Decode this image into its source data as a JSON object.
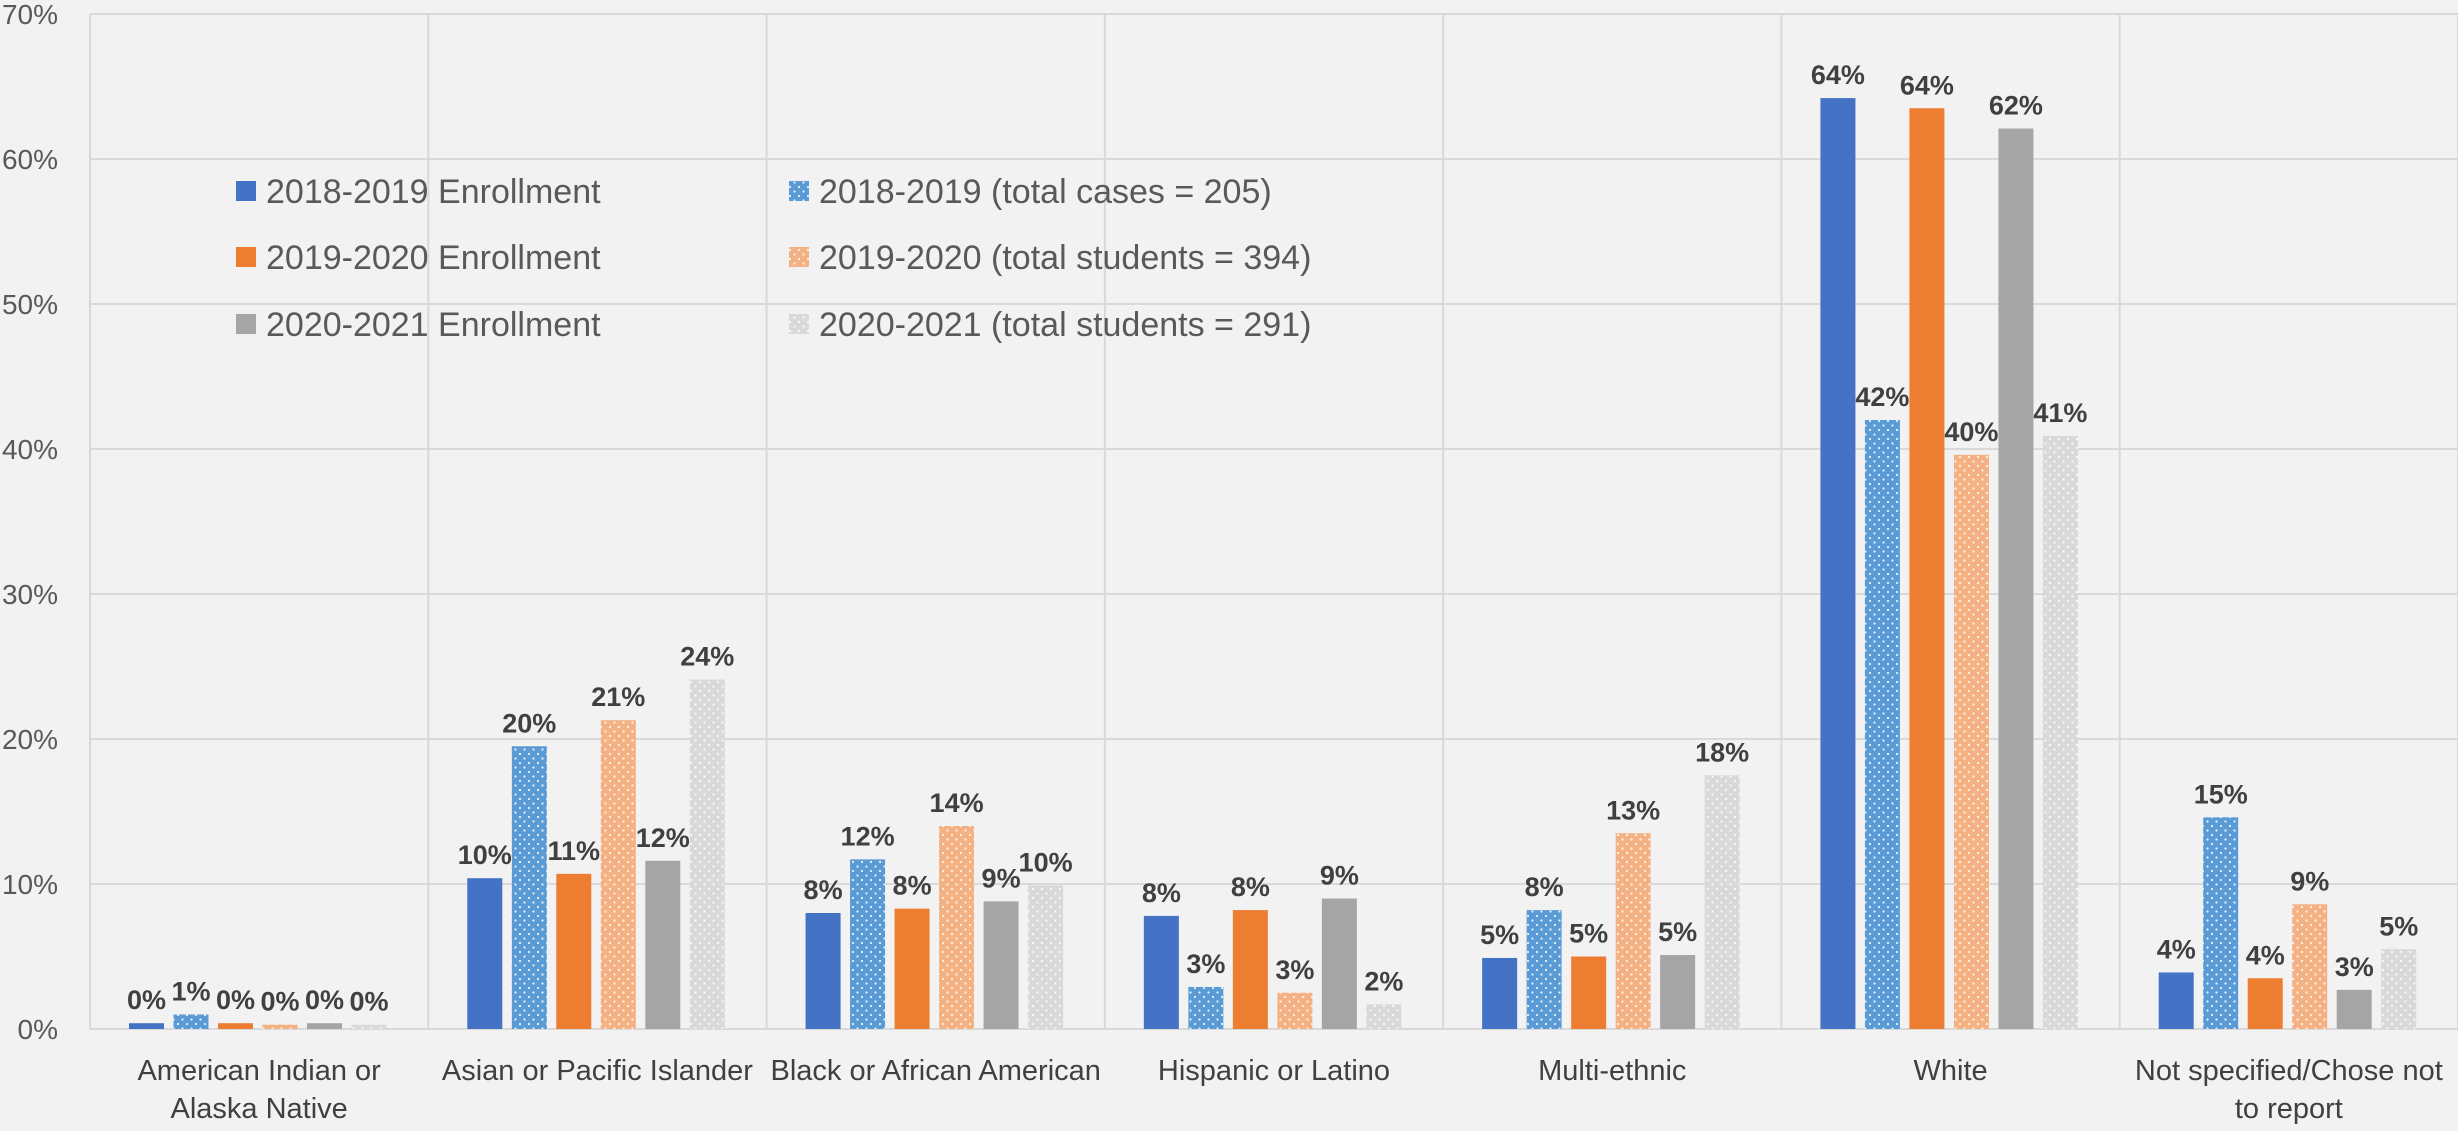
{
  "chart_data": {
    "type": "bar",
    "categories": [
      [
        "American Indian or",
        "Alaska Native"
      ],
      [
        "Asian or Pacific Islander"
      ],
      [
        "Black or African American"
      ],
      [
        "Hispanic or Latino"
      ],
      [
        "Multi-ethnic"
      ],
      [
        "White"
      ],
      [
        "Not specified/Chose not",
        "to report"
      ]
    ],
    "series": [
      {
        "name": "2018-2019 Enrollment",
        "color": "#4472c4",
        "pattern": "solid",
        "values": [
          0.4,
          10.4,
          8.0,
          7.8,
          4.9,
          64.2,
          3.9
        ],
        "labels": [
          "0%",
          "10%",
          "8%",
          "8%",
          "5%",
          "64%",
          "4%"
        ]
      },
      {
        "name": "2018-2019 (total cases = 205)",
        "color": "#5b9bd5",
        "pattern": "dots",
        "values": [
          1.0,
          19.5,
          11.7,
          2.9,
          8.2,
          42.0,
          14.6
        ],
        "labels": [
          "1%",
          "20%",
          "12%",
          "3%",
          "8%",
          "42%",
          "15%"
        ]
      },
      {
        "name": "2019-2020 Enrollment",
        "color": "#ed7d31",
        "pattern": "solid",
        "values": [
          0.4,
          10.7,
          8.3,
          8.2,
          5.0,
          63.5,
          3.5
        ],
        "labels": [
          "0%",
          "11%",
          "8%",
          "8%",
          "5%",
          "64%",
          "4%"
        ]
      },
      {
        "name": "2019-2020 (total students = 394)",
        "color": "#f4b183",
        "pattern": "dots",
        "values": [
          0.3,
          21.3,
          14.0,
          2.5,
          13.5,
          39.6,
          8.6
        ],
        "labels": [
          "0%",
          "21%",
          "14%",
          "3%",
          "13%",
          "40%",
          "9%"
        ]
      },
      {
        "name": "2020-2021 Enrollment",
        "color": "#a5a5a5",
        "pattern": "solid",
        "values": [
          0.4,
          11.6,
          8.8,
          9.0,
          5.1,
          62.1,
          2.7
        ],
        "labels": [
          "0%",
          "12%",
          "9%",
          "9%",
          "5%",
          "62%",
          "3%"
        ]
      },
      {
        "name": "2020-2021 (total students = 291)",
        "color": "#d9d9d9",
        "pattern": "dots",
        "values": [
          0.3,
          24.1,
          9.9,
          1.7,
          17.5,
          40.9,
          5.5
        ],
        "labels": [
          "0%",
          "24%",
          "10%",
          "2%",
          "18%",
          "41%",
          "5%"
        ]
      }
    ],
    "yticks": [
      "0%",
      "10%",
      "20%",
      "30%",
      "40%",
      "50%",
      "60%",
      "70%"
    ],
    "ylim": [
      0,
      70
    ],
    "ylabel": "",
    "xlabel": "",
    "title": "",
    "grid": true,
    "legend": "upper-left inside plot, two columns"
  }
}
